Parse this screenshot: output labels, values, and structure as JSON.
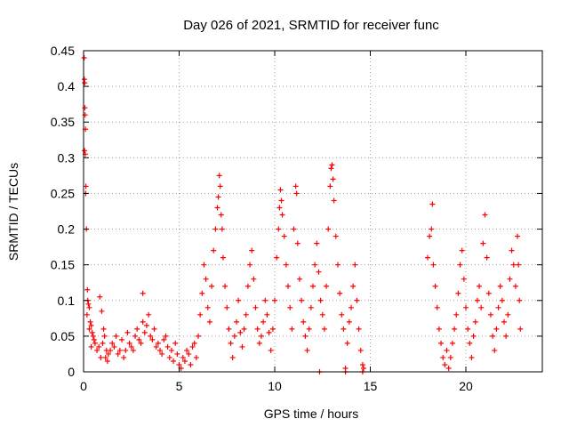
{
  "chart_data": {
    "type": "scatter",
    "title": "Day 026 of 2021, SRMTID for receiver func",
    "xlabel": "GPS time / hours",
    "ylabel": "SRMTID / TECUs",
    "xlim": [
      0,
      24
    ],
    "ylim": [
      0,
      0.45
    ],
    "xticks": [
      0,
      5,
      10,
      15,
      20
    ],
    "yticks": [
      0,
      0.05,
      0.1,
      0.15,
      0.2,
      0.25,
      0.3,
      0.35,
      0.4,
      0.45
    ],
    "xtick_labels": [
      "0",
      "5",
      "10",
      "15",
      "20"
    ],
    "ytick_labels": [
      "0",
      "0.05",
      "0.1",
      "0.15",
      "0.2",
      "0.25",
      "0.3",
      "0.35",
      "0.4",
      "0.45"
    ],
    "grid": true,
    "legend": "none",
    "marker": "plus",
    "color": "#ff0000",
    "series": [
      {
        "points": [
          [
            0.03,
            0.44
          ],
          [
            0.04,
            0.41
          ],
          [
            0.06,
            0.405
          ],
          [
            0.07,
            0.37
          ],
          [
            0.08,
            0.36
          ],
          [
            0.1,
            0.34
          ],
          [
            0.05,
            0.31
          ],
          [
            0.09,
            0.305
          ],
          [
            0.12,
            0.26
          ],
          [
            0.11,
            0.25
          ],
          [
            0.15,
            0.2
          ],
          [
            0.2,
            0.115
          ],
          [
            0.22,
            0.1
          ],
          [
            0.25,
            0.095
          ],
          [
            0.3,
            0.09
          ],
          [
            0.18,
            0.08
          ],
          [
            0.35,
            0.07
          ],
          [
            0.4,
            0.065
          ],
          [
            0.3,
            0.06
          ],
          [
            0.45,
            0.055
          ],
          [
            0.5,
            0.05
          ],
          [
            0.55,
            0.045
          ],
          [
            0.6,
            0.04
          ],
          [
            0.4,
            0.035
          ],
          [
            0.7,
            0.03
          ],
          [
            0.8,
            0.035
          ],
          [
            0.9,
            0.02
          ],
          [
            1.0,
            0.04
          ],
          [
            1.1,
            0.05
          ],
          [
            1.2,
            0.03
          ],
          [
            1.3,
            0.025
          ],
          [
            0.85,
            0.105
          ],
          [
            0.95,
            0.085
          ],
          [
            1.05,
            0.06
          ],
          [
            1.15,
            0.02
          ],
          [
            1.25,
            0.015
          ],
          [
            1.4,
            0.03
          ],
          [
            1.5,
            0.04
          ],
          [
            1.6,
            0.035
          ],
          [
            1.7,
            0.05
          ],
          [
            1.8,
            0.025
          ],
          [
            1.9,
            0.03
          ],
          [
            2.0,
            0.045
          ],
          [
            2.1,
            0.02
          ],
          [
            2.2,
            0.03
          ],
          [
            2.3,
            0.055
          ],
          [
            2.4,
            0.04
          ],
          [
            2.5,
            0.035
          ],
          [
            2.6,
            0.03
          ],
          [
            2.7,
            0.05
          ],
          [
            2.8,
            0.06
          ],
          [
            2.9,
            0.045
          ],
          [
            3.0,
            0.04
          ],
          [
            3.1,
            0.07
          ],
          [
            3.2,
            0.055
          ],
          [
            3.3,
            0.065
          ],
          [
            3.4,
            0.08
          ],
          [
            3.5,
            0.05
          ],
          [
            3.6,
            0.045
          ],
          [
            3.1,
            0.11
          ],
          [
            3.7,
            0.06
          ],
          [
            3.8,
            0.035
          ],
          [
            3.9,
            0.04
          ],
          [
            4.0,
            0.03
          ],
          [
            4.1,
            0.025
          ],
          [
            4.2,
            0.045
          ],
          [
            4.3,
            0.05
          ],
          [
            4.4,
            0.035
          ],
          [
            4.5,
            0.02
          ],
          [
            4.6,
            0.03
          ],
          [
            4.7,
            0.015
          ],
          [
            4.8,
            0.04
          ],
          [
            4.9,
            0.025
          ],
          [
            5.0,
            0.01
          ],
          [
            5.1,
            0.005
          ],
          [
            5.2,
            0.02
          ],
          [
            5.3,
            0.015
          ],
          [
            5.4,
            0.03
          ],
          [
            5.5,
            0.025
          ],
          [
            5.6,
            0.01
          ],
          [
            5.7,
            0.035
          ],
          [
            5.8,
            0.04
          ],
          [
            5.9,
            0.02
          ],
          [
            6.0,
            0.05
          ],
          [
            6.1,
            0.08
          ],
          [
            6.2,
            0.11
          ],
          [
            6.3,
            0.15
          ],
          [
            6.4,
            0.13
          ],
          [
            6.5,
            0.09
          ],
          [
            6.6,
            0.07
          ],
          [
            6.7,
            0.12
          ],
          [
            6.8,
            0.17
          ],
          [
            6.9,
            0.2
          ],
          [
            7.0,
            0.23
          ],
          [
            7.05,
            0.245
          ],
          [
            7.1,
            0.275
          ],
          [
            7.15,
            0.26
          ],
          [
            7.2,
            0.22
          ],
          [
            7.25,
            0.2
          ],
          [
            7.3,
            0.16
          ],
          [
            7.4,
            0.12
          ],
          [
            7.5,
            0.09
          ],
          [
            7.6,
            0.06
          ],
          [
            7.7,
            0.04
          ],
          [
            7.8,
            0.02
          ],
          [
            7.9,
            0.05
          ],
          [
            8.0,
            0.07
          ],
          [
            8.1,
            0.1
          ],
          [
            8.2,
            0.055
          ],
          [
            8.3,
            0.035
          ],
          [
            8.4,
            0.06
          ],
          [
            8.5,
            0.08
          ],
          [
            8.6,
            0.12
          ],
          [
            8.7,
            0.15
          ],
          [
            8.8,
            0.17
          ],
          [
            8.9,
            0.13
          ],
          [
            9.0,
            0.09
          ],
          [
            9.1,
            0.06
          ],
          [
            9.2,
            0.04
          ],
          [
            9.3,
            0.05
          ],
          [
            9.4,
            0.07
          ],
          [
            9.5,
            0.1
          ],
          [
            9.6,
            0.08
          ],
          [
            9.7,
            0.055
          ],
          [
            9.8,
            0.03
          ],
          [
            9.9,
            0.06
          ],
          [
            10.0,
            0.1
          ],
          [
            10.1,
            0.16
          ],
          [
            10.2,
            0.2
          ],
          [
            10.25,
            0.23
          ],
          [
            10.3,
            0.255
          ],
          [
            10.35,
            0.24
          ],
          [
            10.4,
            0.22
          ],
          [
            10.5,
            0.19
          ],
          [
            10.6,
            0.15
          ],
          [
            10.7,
            0.12
          ],
          [
            10.8,
            0.09
          ],
          [
            10.9,
            0.06
          ],
          [
            11.0,
            0.2
          ],
          [
            11.1,
            0.26
          ],
          [
            11.15,
            0.25
          ],
          [
            11.2,
            0.18
          ],
          [
            11.3,
            0.13
          ],
          [
            11.4,
            0.1
          ],
          [
            11.5,
            0.07
          ],
          [
            11.6,
            0.05
          ],
          [
            11.7,
            0.03
          ],
          [
            11.8,
            0.06
          ],
          [
            11.9,
            0.09
          ],
          [
            12.0,
            0.12
          ],
          [
            12.1,
            0.15
          ],
          [
            12.2,
            0.18
          ],
          [
            12.3,
            0.14
          ],
          [
            12.4,
            0.1
          ],
          [
            12.5,
            0.08
          ],
          [
            12.6,
            0.06
          ],
          [
            12.7,
            0.12
          ],
          [
            12.8,
            0.2
          ],
          [
            12.9,
            0.26
          ],
          [
            12.95,
            0.285
          ],
          [
            13.0,
            0.29
          ],
          [
            13.05,
            0.27
          ],
          [
            13.1,
            0.24
          ],
          [
            13.2,
            0.19
          ],
          [
            13.3,
            0.15
          ],
          [
            13.4,
            0.11
          ],
          [
            13.5,
            0.08
          ],
          [
            13.6,
            0.06
          ],
          [
            13.7,
            0.005
          ],
          [
            13.8,
            0.04
          ],
          [
            13.9,
            0.07
          ],
          [
            14.0,
            0.09
          ],
          [
            14.1,
            0.12
          ],
          [
            14.2,
            0.15
          ],
          [
            14.3,
            0.1
          ],
          [
            14.4,
            0.06
          ],
          [
            14.5,
            0.03
          ],
          [
            14.6,
            0.01
          ],
          [
            14.65,
            0.005
          ],
          [
            12.35,
            0.0
          ],
          [
            13.7,
            0.0
          ],
          [
            14.6,
            0.0
          ],
          [
            18.0,
            0.16
          ],
          [
            18.1,
            0.19
          ],
          [
            18.2,
            0.2
          ],
          [
            18.25,
            0.235
          ],
          [
            18.3,
            0.15
          ],
          [
            18.4,
            0.12
          ],
          [
            18.5,
            0.09
          ],
          [
            18.6,
            0.06
          ],
          [
            18.7,
            0.04
          ],
          [
            18.8,
            0.02
          ],
          [
            18.9,
            0.01
          ],
          [
            19.0,
            0.03
          ],
          [
            19.1,
            0.005
          ],
          [
            19.2,
            0.02
          ],
          [
            19.3,
            0.04
          ],
          [
            19.4,
            0.06
          ],
          [
            19.5,
            0.08
          ],
          [
            19.6,
            0.11
          ],
          [
            19.7,
            0.15
          ],
          [
            19.8,
            0.17
          ],
          [
            19.9,
            0.13
          ],
          [
            20.0,
            0.09
          ],
          [
            20.1,
            0.06
          ],
          [
            20.2,
            0.04
          ],
          [
            20.3,
            0.02
          ],
          [
            20.4,
            0.05
          ],
          [
            20.5,
            0.07
          ],
          [
            20.6,
            0.1
          ],
          [
            20.7,
            0.12
          ],
          [
            20.8,
            0.09
          ],
          [
            20.9,
            0.18
          ],
          [
            21.0,
            0.22
          ],
          [
            21.1,
            0.16
          ],
          [
            21.2,
            0.11
          ],
          [
            21.3,
            0.08
          ],
          [
            21.4,
            0.05
          ],
          [
            21.5,
            0.03
          ],
          [
            21.6,
            0.06
          ],
          [
            21.7,
            0.09
          ],
          [
            21.8,
            0.12
          ],
          [
            21.9,
            0.1
          ],
          [
            22.0,
            0.07
          ],
          [
            22.1,
            0.05
          ],
          [
            22.2,
            0.08
          ],
          [
            22.3,
            0.13
          ],
          [
            22.4,
            0.17
          ],
          [
            22.5,
            0.15
          ],
          [
            22.6,
            0.12
          ],
          [
            22.7,
            0.19
          ],
          [
            22.75,
            0.15
          ],
          [
            22.8,
            0.1
          ],
          [
            22.85,
            0.06
          ]
        ]
      }
    ]
  }
}
